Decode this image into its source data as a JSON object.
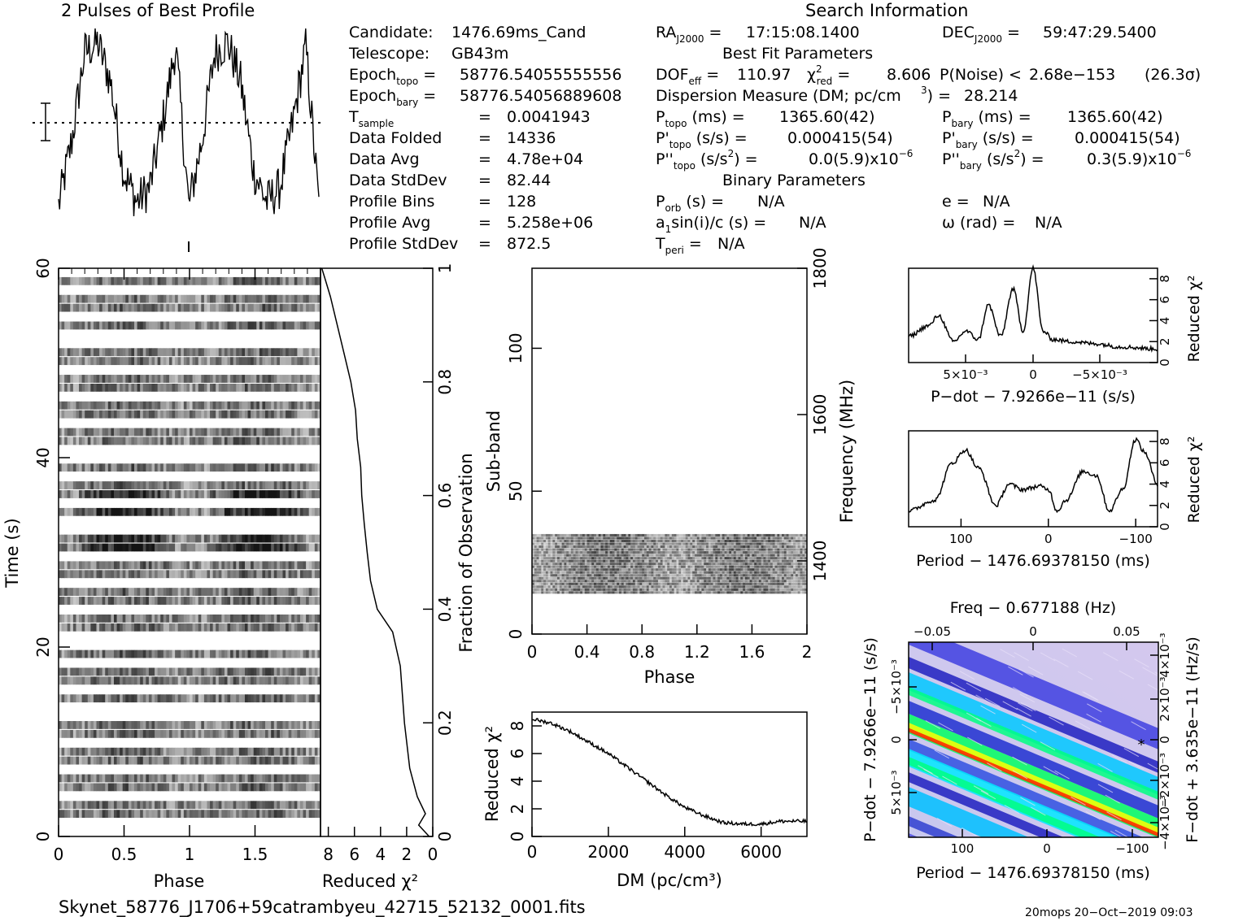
{
  "title": "2 Pulses of Best Profile",
  "search_header": "Search Information",
  "info_left": {
    "candidate_label": "Candidate:",
    "candidate": "1476.69ms_Cand",
    "telescope_label": "Telescope:",
    "telescope": "GB43m",
    "epoch_topo": "58776.54055555556",
    "epoch_bary": "58776.54056889608",
    "rows": [
      {
        "label": "T",
        "sub": "sample",
        "value": "0.0041943"
      },
      {
        "label": "Data Folded",
        "sub": "",
        "value": "14336"
      },
      {
        "label": "Data Avg",
        "sub": "",
        "value": "4.78e+04"
      },
      {
        "label": "Data StdDev",
        "sub": "",
        "value": "82.44"
      },
      {
        "label": "Profile Bins",
        "sub": "",
        "value": "128"
      },
      {
        "label": "Profile Avg",
        "sub": "",
        "value": "5.258e+06"
      },
      {
        "label": "Profile StdDev",
        "sub": "",
        "value": "872.5"
      }
    ]
  },
  "info_mid": {
    "ra": "17:15:08.1400",
    "dec": "59:47:29.5400",
    "best_fit_header": "Best Fit Parameters",
    "dof_eff": "110.97",
    "chi2_red": "8.606",
    "p_noise": "2.68e−153",
    "sigma": "(26.3σ)",
    "dm_text": "Dispersion Measure (DM; pc/cm",
    "dm_value": "28.214",
    "p_topo": "1365.60(42)",
    "pd_topo": "0.000415(54)",
    "pdd_topo": "0.0(5.9)x10",
    "p_bary": "1365.60(42)",
    "pd_bary": "0.000415(54)",
    "pdd_bary": "0.3(5.9)x10",
    "binary_header": "Binary Parameters",
    "p_orb": "N/A",
    "a1sini": "N/A",
    "t_peri": "N/A",
    "e": "N/A",
    "omega": "N/A"
  },
  "footer_file": "Skynet_58776_J1706+59catrambyeu_42715_52132_0001.fits",
  "footer_stamp": "20mops 20−Oct−2019 09:03",
  "colors": {
    "ink": "#000000",
    "heat_low": "#b4b4dc",
    "heat_high": "#ff0000"
  },
  "chart_data": [
    {
      "type": "line",
      "name": "profile",
      "title": "2 Pulses of Best Profile",
      "xlabel": "",
      "ylabel": "",
      "x_range": [
        0,
        2
      ],
      "y_range": [
        0,
        1
      ],
      "description_points": [
        [
          0.0,
          0.13
        ],
        [
          0.1,
          0.45
        ],
        [
          0.2,
          0.9
        ],
        [
          0.3,
          0.95
        ],
        [
          0.4,
          0.75
        ],
        [
          0.5,
          0.3
        ],
        [
          0.6,
          0.15
        ],
        [
          0.7,
          0.22
        ],
        [
          0.8,
          0.55
        ],
        [
          0.9,
          0.93
        ],
        [
          1.0,
          0.13
        ],
        [
          1.1,
          0.45
        ],
        [
          1.2,
          0.9
        ],
        [
          1.3,
          0.95
        ],
        [
          1.4,
          0.75
        ],
        [
          1.5,
          0.3
        ],
        [
          1.6,
          0.15
        ],
        [
          1.7,
          0.22
        ],
        [
          1.8,
          0.55
        ],
        [
          1.9,
          0.93
        ],
        [
          2.0,
          0.13
        ]
      ]
    },
    {
      "type": "heatmap",
      "name": "time-phase",
      "xlabel": "Phase",
      "ylabel": "Time (s)",
      "xlim": [
        0,
        2
      ],
      "ylim": [
        0,
        60
      ],
      "x_ticks": [
        "0",
        "0.5",
        "1",
        "1.5"
      ],
      "y_ticks": [
        "0",
        "20",
        "40",
        "60"
      ]
    },
    {
      "type": "line",
      "name": "reduced-chi2-vs-time",
      "xlabel": "Reduced χ²",
      "ylabel": "Fraction of Observation",
      "xlim": [
        8.5,
        0
      ],
      "ylim": [
        0,
        1
      ],
      "x_ticks": [
        "8",
        "6",
        "4",
        "2",
        "0"
      ],
      "y_ticks": [
        "0",
        "0.2",
        "0.4",
        "0.6",
        "0.8",
        "1"
      ],
      "points": [
        [
          0.3,
          0.0
        ],
        [
          1.0,
          0.02
        ],
        [
          0.5,
          0.04
        ],
        [
          1.1,
          0.07
        ],
        [
          1.8,
          0.12
        ],
        [
          2.1,
          0.2
        ],
        [
          2.4,
          0.3
        ],
        [
          3.1,
          0.36
        ],
        [
          4.2,
          0.4
        ],
        [
          4.8,
          0.45
        ],
        [
          5.0,
          0.5
        ],
        [
          5.2,
          0.55
        ],
        [
          5.4,
          0.6
        ],
        [
          5.6,
          0.65
        ],
        [
          5.8,
          0.7
        ],
        [
          6.0,
          0.75
        ],
        [
          6.3,
          0.8
        ],
        [
          6.8,
          0.85
        ],
        [
          7.4,
          0.9
        ],
        [
          7.9,
          0.95
        ],
        [
          8.2,
          0.98
        ],
        [
          8.5,
          1.0
        ]
      ]
    },
    {
      "type": "heatmap",
      "name": "subband-phase",
      "xlabel": "Phase",
      "ylabel": "Sub-band",
      "y2label": "Frequency (MHz)",
      "xlim": [
        0,
        2
      ],
      "ylim": [
        0,
        128
      ],
      "x_ticks": [
        "0",
        "0.4",
        "0.8",
        "1.2",
        "1.6",
        "2"
      ],
      "y_ticks": [
        "0",
        "50",
        "100"
      ],
      "y2_ticks": [
        "1400",
        "1600",
        "1800"
      ],
      "filled_subbands": [
        14,
        35
      ]
    },
    {
      "type": "line",
      "name": "dm-curve",
      "xlabel": "DM (pc/cm³)",
      "ylabel": "Reduced χ²",
      "xlim": [
        0,
        7200
      ],
      "ylim": [
        0,
        9
      ],
      "x_ticks": [
        "0",
        "2000",
        "4000",
        "6000"
      ],
      "y_ticks": [
        "0",
        "2",
        "4",
        "6",
        "8"
      ],
      "x": [
        0,
        500,
        1000,
        1500,
        2000,
        2500,
        3000,
        3500,
        4000,
        4500,
        5000,
        5500,
        6000,
        6500,
        7200
      ],
      "y": [
        8.5,
        8.2,
        7.6,
        6.8,
        6.0,
        5.0,
        4.0,
        3.0,
        2.1,
        1.5,
        1.0,
        0.9,
        0.9,
        1.1,
        1.1
      ]
    },
    {
      "type": "line",
      "name": "pdot-curve",
      "xlabel": "P−dot − 7.9266e−11 (s/s)",
      "ylabel": "Reduced χ²",
      "x_ticks": [
        "5×10⁻³",
        "0",
        "−5×10⁻³"
      ],
      "y_ticks": [
        "0",
        "2",
        "4",
        "6",
        "8"
      ],
      "ylim": [
        0,
        9
      ],
      "x": [
        -0.5,
        -0.42,
        -0.38,
        -0.32,
        -0.27,
        -0.22,
        -0.18,
        -0.13,
        -0.08,
        -0.04,
        0.0,
        0.04,
        0.08,
        0.15,
        0.25,
        0.35,
        0.5
      ],
      "y": [
        2.5,
        3.5,
        4.5,
        2.0,
        3.0,
        2.2,
        5.5,
        2.5,
        7.0,
        3.0,
        9.0,
        3.0,
        2.2,
        2.0,
        1.8,
        1.5,
        1.3
      ]
    },
    {
      "type": "line",
      "name": "period-curve",
      "xlabel": "Period − 1476.69378150 (ms)",
      "ylabel": "Reduced χ²",
      "xlim": [
        160,
        -125
      ],
      "ylim": [
        0,
        9
      ],
      "x_ticks": [
        "100",
        "0",
        "−100"
      ],
      "y_ticks": [
        "0",
        "2",
        "4",
        "6",
        "8"
      ],
      "x": [
        160,
        130,
        110,
        95,
        80,
        60,
        45,
        30,
        10,
        0,
        -10,
        -20,
        -40,
        -55,
        -70,
        -85,
        -100,
        -110,
        -125
      ],
      "y": [
        1.5,
        2.5,
        6.0,
        7.2,
        5.5,
        2.0,
        4.0,
        3.5,
        3.8,
        3.5,
        1.5,
        2.5,
        5.2,
        4.8,
        1.5,
        3.5,
        8.2,
        7.0,
        4.0
      ]
    },
    {
      "type": "heatmap",
      "name": "period-pdot",
      "title": "Freq − 0.677188 (Hz)",
      "xlabel": "Period − 1476.69378150 (ms)",
      "ylabel": "P−dot − 7.9266e−11 (s/s)",
      "y2label": "F−dot + 3.635e−11 (Hz/s)",
      "x_ticks": [
        "100",
        "0",
        "−100"
      ],
      "top_ticks": [
        "−0.05",
        "0",
        "0.05"
      ],
      "y_ticks": [
        "−5×10⁻³",
        "0",
        "5×10⁻³"
      ],
      "y2_ticks": [
        "4×10⁻³",
        "2×10⁻³",
        "0",
        "−2×10⁻³",
        "−4×10⁻³"
      ]
    }
  ]
}
